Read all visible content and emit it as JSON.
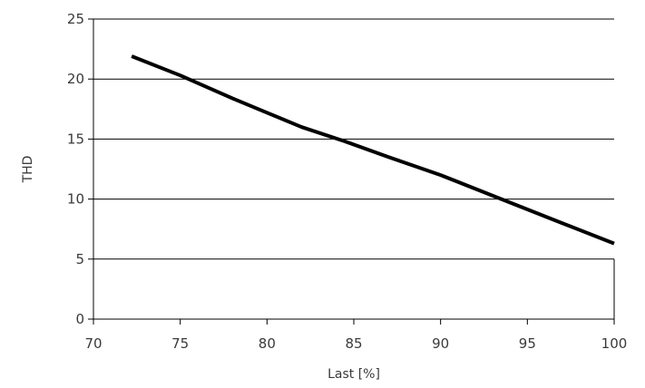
{
  "chart_data": {
    "type": "line",
    "title": "",
    "xlabel": "Last [%]",
    "ylabel": "THD",
    "xlim": [
      70,
      100
    ],
    "ylim": [
      0,
      25
    ],
    "x_ticks": [
      70,
      75,
      80,
      85,
      90,
      95,
      100
    ],
    "y_ticks": [
      0,
      5,
      10,
      15,
      20,
      25
    ],
    "grid": "horizontal",
    "legend": "none",
    "series": [
      {
        "color": "#000000",
        "x": [
          72.2,
          75,
          78,
          80,
          82,
          84.5,
          87,
          90,
          93.5,
          97,
          100
        ],
        "y": [
          21.9,
          20.3,
          18.4,
          17.2,
          16.0,
          14.8,
          13.5,
          12.0,
          10.0,
          8.0,
          6.3
        ]
      }
    ]
  }
}
